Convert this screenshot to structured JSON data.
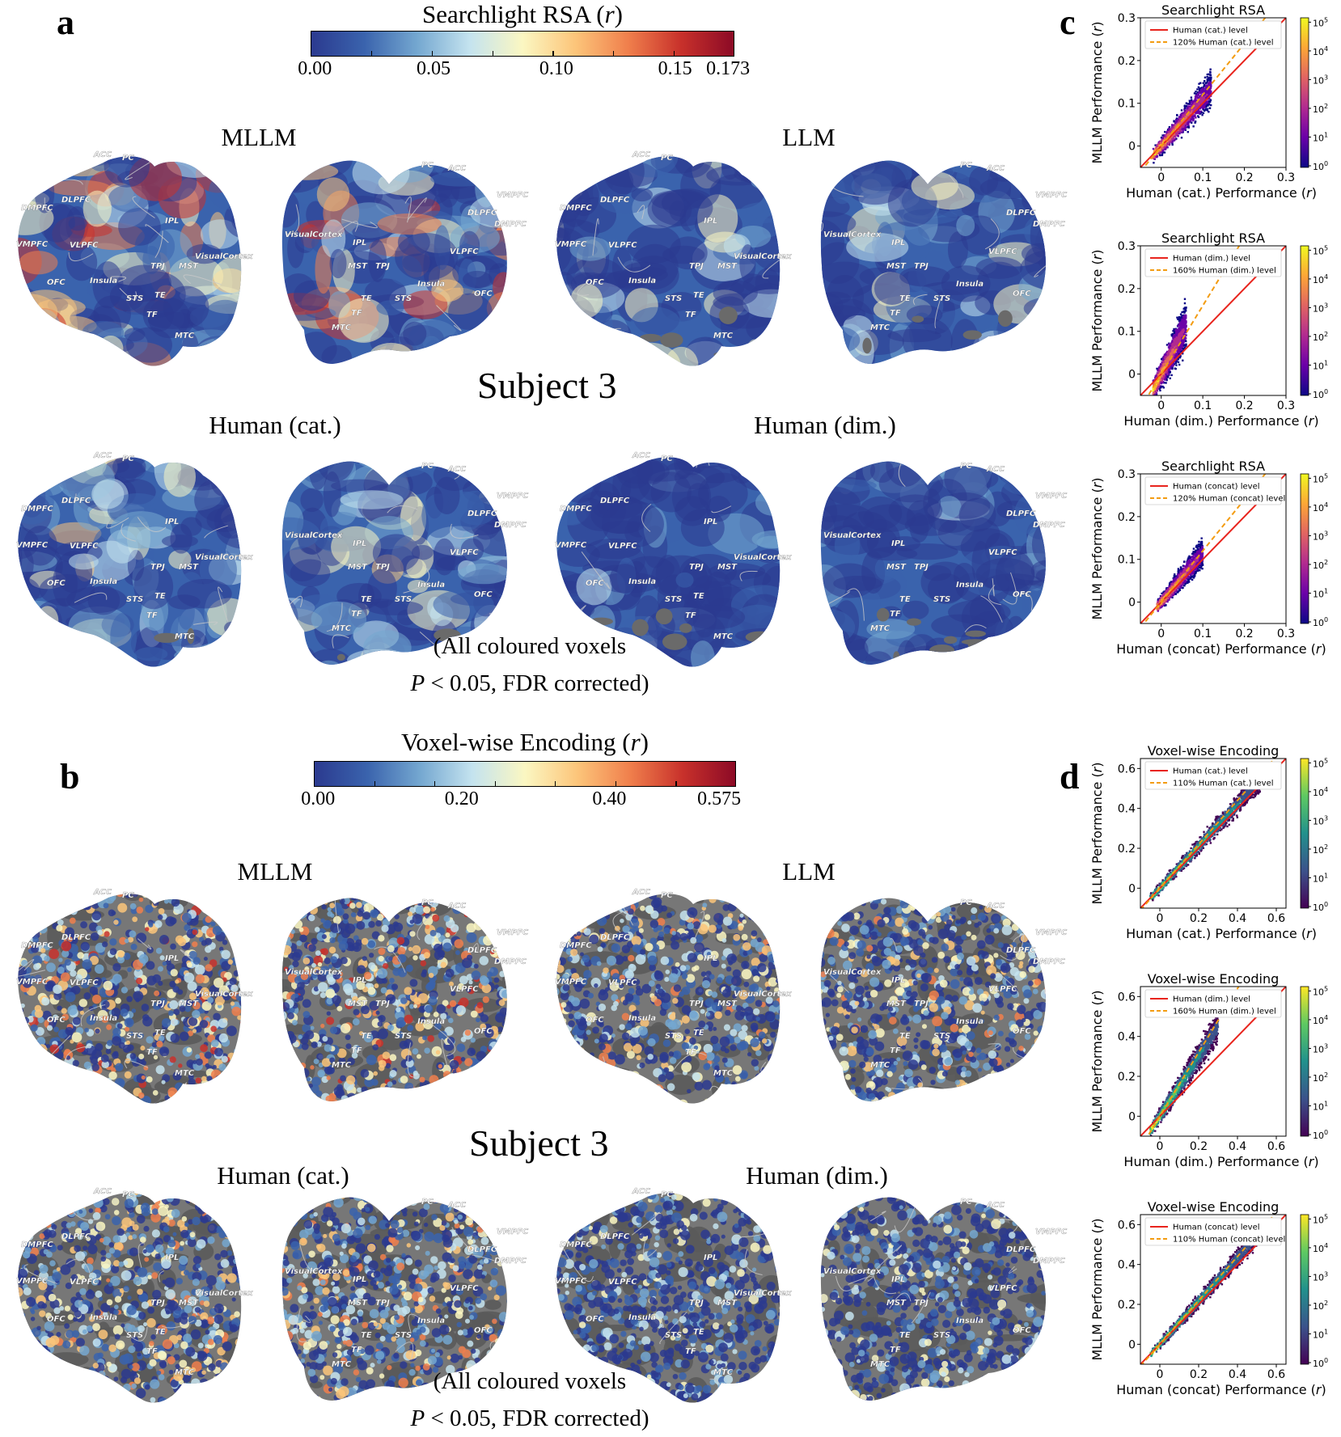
{
  "panel_a": {
    "letter": "a",
    "colorbar_title": "Searchlight RSA (",
    "colorbar_title_r": "r",
    "colorbar_title_end": ")",
    "colorbar_ticks": [
      "0.00",
      "0.05",
      "0.10",
      "0.15",
      "0.173"
    ],
    "subject": "Subject 3",
    "labels": {
      "mllm": "MLLM",
      "llm": "LLM",
      "human_cat": "Human (cat.)",
      "human_dim": "Human (dim.)"
    },
    "note_line1": "(All coloured voxels",
    "note_p": "P",
    "note_line2": " < 0.05, FDR corrected)"
  },
  "panel_b": {
    "letter": "b",
    "colorbar_title": "Voxel-wise Encoding (",
    "colorbar_title_r": "r",
    "colorbar_title_end": ")",
    "colorbar_ticks": [
      "0.00",
      "0.20",
      "0.40",
      "0.575"
    ],
    "subject": "Subject 3",
    "labels": {
      "mllm": "MLLM",
      "llm": "LLM",
      "human_cat": "Human (cat.)",
      "human_dim": "Human (dim.)"
    },
    "note_line1": "(All coloured voxels",
    "note_p": "P",
    "note_line2": " < 0.05, FDR corrected)"
  },
  "panel_c": {
    "letter": "c"
  },
  "panel_d": {
    "letter": "d"
  },
  "brain_regions_left": [
    "ACC",
    "PC",
    "DLPFC",
    "DMPFC",
    "VMPFC",
    "VLPFC",
    "IPL",
    "VisualCortex",
    "TPJ",
    "MST",
    "OFC",
    "Insula",
    "STS",
    "TE",
    "TF",
    "MTC"
  ],
  "brain_regions_right": [
    "PC",
    "ACC",
    "VMPFC",
    "DLPFC",
    "DMPFC",
    "VisualCortex",
    "IPL",
    "VLPFC",
    "MST",
    "TPJ",
    "Insula",
    "OFC",
    "STS",
    "TE",
    "TF",
    "MTC"
  ],
  "colors": {
    "rsa_scale": [
      "#2b3a8f",
      "#3a63ad",
      "#74a7d0",
      "#c4e3ef",
      "#fbf7c2",
      "#fcc57a",
      "#f07f4c",
      "#c8312b",
      "#8c0a26"
    ],
    "enc_scale": [
      "#2b3a8f",
      "#3a63ad",
      "#74a7d0",
      "#c4e3ef",
      "#fbf7c2",
      "#fcc57a",
      "#f07f4c",
      "#c8312b",
      "#8c0a26"
    ],
    "human_line": "#e8241d",
    "pct_line": "#f39c12",
    "plasma": [
      "#0d0887",
      "#6a00a8",
      "#b12a90",
      "#e16462",
      "#fca636",
      "#f0f921"
    ],
    "viridis": [
      "#440154",
      "#3b528b",
      "#21918c",
      "#5ec962",
      "#fde725"
    ]
  },
  "chart_data": [
    {
      "type": "scatter",
      "panel": "c",
      "title": "Searchlight RSA",
      "xlabel": "Human (cat.) Performance (",
      "ylabel": "MLLM Performance (",
      "axis_var": "r",
      "xlim": [
        -0.05,
        0.3
      ],
      "ylim": [
        -0.05,
        0.3
      ],
      "xticks": [
        "0",
        "0.1",
        "0.2",
        "0.3"
      ],
      "yticks": [
        "0",
        "0.1",
        "0.2",
        "0.3"
      ],
      "tick_values": [
        0,
        0.1,
        0.2,
        0.3
      ],
      "legend": [
        "Human (cat.) level",
        "120% Human (cat.) level"
      ],
      "slope_human": 1.0,
      "slope_pct": 1.2,
      "cbar_ticks": [
        "10",
        "10",
        "10",
        "10",
        "10",
        "10"
      ],
      "cbar_exps": [
        "0",
        "1",
        "2",
        "3",
        "4",
        "5"
      ],
      "cmap": "plasma",
      "density": {
        "x_range": [
          -0.02,
          0.12
        ],
        "spread": 0.035,
        "center_slope": 1.1
      }
    },
    {
      "type": "scatter",
      "panel": "c",
      "title": "Searchlight RSA",
      "xlabel": "Human (dim.) Performance (",
      "ylabel": "MLLM Performance (",
      "axis_var": "r",
      "xlim": [
        -0.05,
        0.3
      ],
      "ylim": [
        -0.05,
        0.3
      ],
      "xticks": [
        "0",
        "0.1",
        "0.2",
        "0.3"
      ],
      "yticks": [
        "0",
        "0.1",
        "0.2",
        "0.3"
      ],
      "tick_values": [
        0,
        0.1,
        0.2,
        0.3
      ],
      "legend": [
        "Human (dim.) level",
        "160% Human (dim.) level"
      ],
      "slope_human": 1.0,
      "slope_pct": 1.6,
      "cbar_ticks": [
        "10",
        "10",
        "10",
        "10",
        "10",
        "10"
      ],
      "cbar_exps": [
        "0",
        "1",
        "2",
        "3",
        "4",
        "5"
      ],
      "cmap": "plasma",
      "density": {
        "x_range": [
          -0.02,
          0.06
        ],
        "spread": 0.05,
        "center_slope": 1.9
      }
    },
    {
      "type": "scatter",
      "panel": "c",
      "title": "Searchlight RSA",
      "xlabel": "Human (concat) Performance (",
      "ylabel": "MLLM Performance (",
      "axis_var": "r",
      "xlim": [
        -0.05,
        0.3
      ],
      "ylim": [
        -0.05,
        0.3
      ],
      "xticks": [
        "0",
        "0.1",
        "0.2",
        "0.3"
      ],
      "yticks": [
        "0",
        "0.1",
        "0.2",
        "0.3"
      ],
      "tick_values": [
        0,
        0.1,
        0.2,
        0.3
      ],
      "legend": [
        "Human (concat) level",
        "120% Human (concat) level"
      ],
      "slope_human": 1.0,
      "slope_pct": 1.2,
      "cbar_ticks": [
        "10",
        "10",
        "10",
        "10",
        "10",
        "10"
      ],
      "cbar_exps": [
        "0",
        "1",
        "2",
        "3",
        "4",
        "5"
      ],
      "cmap": "plasma",
      "density": {
        "x_range": [
          -0.01,
          0.1
        ],
        "spread": 0.03,
        "center_slope": 1.15
      }
    },
    {
      "type": "scatter",
      "panel": "d",
      "title": "Voxel-wise Encoding",
      "xlabel": "Human (cat.) Performance (",
      "ylabel": "MLLM Performance (",
      "axis_var": "r",
      "xlim": [
        -0.1,
        0.65
      ],
      "ylim": [
        -0.1,
        0.65
      ],
      "xticks": [
        "0",
        "0.2",
        "0.4",
        "0.6"
      ],
      "yticks": [
        "0",
        "0.2",
        "0.4",
        "0.6"
      ],
      "tick_values": [
        0,
        0.2,
        0.4,
        0.6
      ],
      "legend": [
        "Human (cat.) level",
        "110% Human (cat.) level"
      ],
      "slope_human": 1.0,
      "slope_pct": 1.1,
      "cbar_ticks": [
        "10",
        "10",
        "10",
        "10",
        "10",
        "10"
      ],
      "cbar_exps": [
        "0",
        "1",
        "2",
        "3",
        "4",
        "5"
      ],
      "cmap": "viridis",
      "density": {
        "x_range": [
          -0.05,
          0.52
        ],
        "spread": 0.05,
        "center_slope": 1.05
      }
    },
    {
      "type": "scatter",
      "panel": "d",
      "title": "Voxel-wise Encoding",
      "xlabel": "Human (dim.) Performance (",
      "ylabel": "MLLM Performance (",
      "axis_var": "r",
      "xlim": [
        -0.1,
        0.65
      ],
      "ylim": [
        -0.1,
        0.65
      ],
      "xticks": [
        "0",
        "0.2",
        "0.4",
        "0.6"
      ],
      "yticks": [
        "0",
        "0.2",
        "0.4",
        "0.6"
      ],
      "tick_values": [
        0,
        0.2,
        0.4,
        0.6
      ],
      "legend": [
        "Human (dim.) level",
        "160% Human (dim.) level"
      ],
      "slope_human": 1.0,
      "slope_pct": 1.6,
      "cbar_ticks": [
        "10",
        "10",
        "10",
        "10",
        "10",
        "10"
      ],
      "cbar_exps": [
        "0",
        "1",
        "2",
        "3",
        "4",
        "5"
      ],
      "cmap": "viridis",
      "density": {
        "x_range": [
          -0.05,
          0.3
        ],
        "spread": 0.07,
        "center_slope": 1.5
      }
    },
    {
      "type": "scatter",
      "panel": "d",
      "title": "Voxel-wise Encoding",
      "xlabel": "Human (concat) Performance (",
      "ylabel": "MLLM Performance (",
      "axis_var": "r",
      "xlim": [
        -0.1,
        0.65
      ],
      "ylim": [
        -0.1,
        0.65
      ],
      "xticks": [
        "0",
        "0.2",
        "0.4",
        "0.6"
      ],
      "yticks": [
        "0",
        "0.2",
        "0.4",
        "0.6"
      ],
      "tick_values": [
        0,
        0.2,
        0.4,
        0.6
      ],
      "legend": [
        "Human (concat) level",
        "110% Human (concat) level"
      ],
      "slope_human": 1.0,
      "slope_pct": 1.1,
      "cbar_ticks": [
        "10",
        "10",
        "10",
        "10",
        "10",
        "10"
      ],
      "cbar_exps": [
        "0",
        "1",
        "2",
        "3",
        "4",
        "5"
      ],
      "cmap": "viridis",
      "density": {
        "x_range": [
          -0.05,
          0.5
        ],
        "spread": 0.045,
        "center_slope": 1.08
      }
    }
  ]
}
